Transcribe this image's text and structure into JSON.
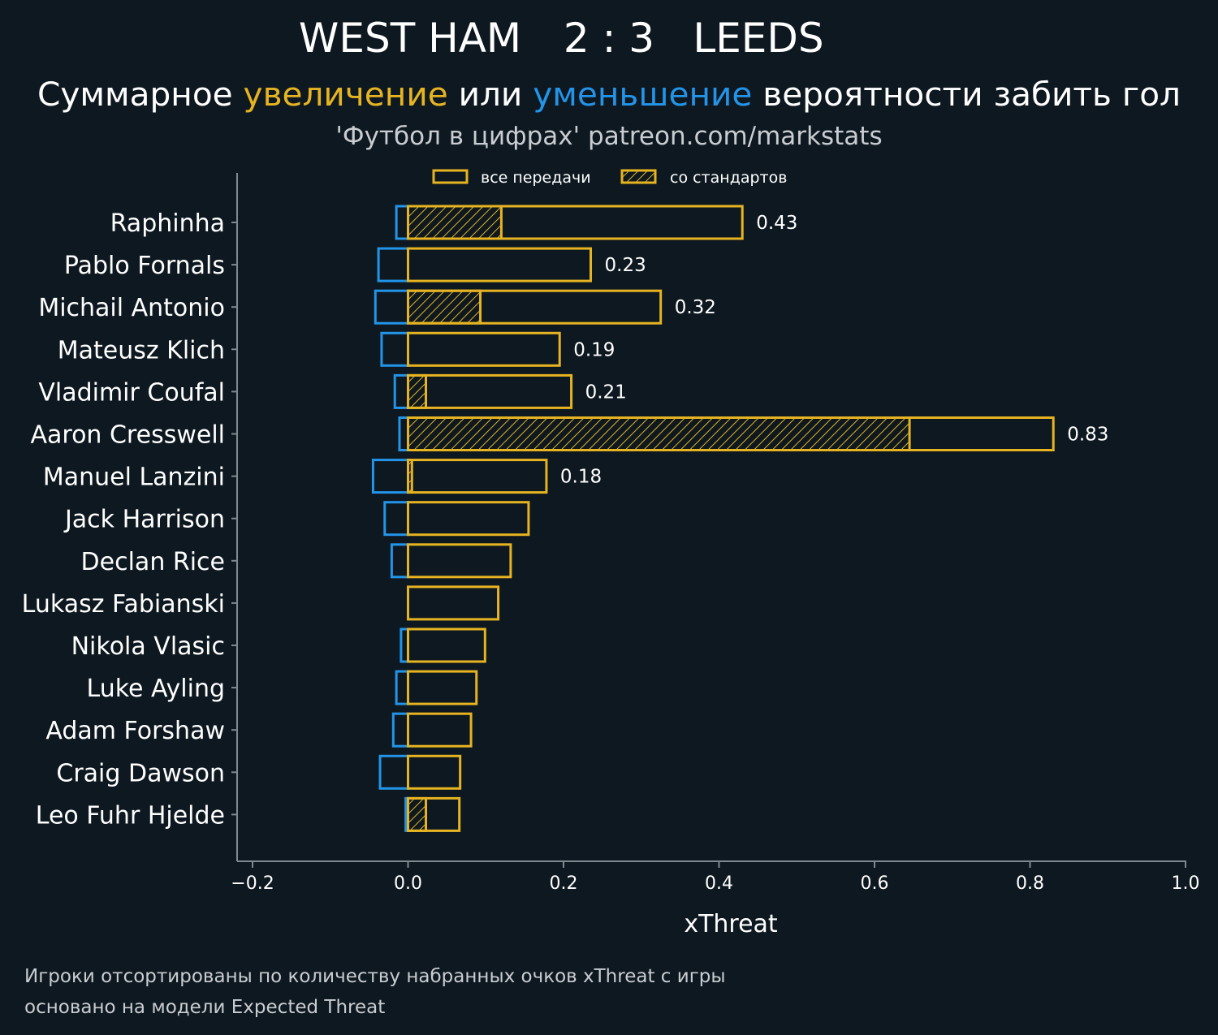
{
  "header": {
    "home_team": "WEST HAM",
    "score": "2 : 3",
    "away_team": "LEEDS",
    "subtitle_part1": "Суммарное ",
    "subtitle_increase": "увеличение",
    "subtitle_part2": " или ",
    "subtitle_decrease": "уменьшение",
    "subtitle_part3": " вероятности забить гол",
    "credit": "'Футбол в цифрах' patreon.com/markstats"
  },
  "legend": {
    "all_passes": "все передачи",
    "set_pieces": "со стандартов"
  },
  "footer": {
    "line1": "Игроки отсортированы по количеству набранных очков xThreat с игры",
    "line2": "основано на модели Expected Threat"
  },
  "colors": {
    "background": "#0e1820",
    "increase": "#e6b422",
    "decrease": "#2394e8",
    "axis": "#7f8a90",
    "text": "#ffffff"
  },
  "chart_data": {
    "type": "bar",
    "orientation": "horizontal",
    "xlabel": "xThreat",
    "xlim": [
      -0.2,
      1.0
    ],
    "xticks": [
      -0.2,
      0.0,
      0.2,
      0.4,
      0.6,
      0.8,
      1.0
    ],
    "xtick_labels": [
      "−0.2",
      "0.0",
      "0.2",
      "0.4",
      "0.6",
      "0.8",
      "1.0"
    ],
    "categories": [
      "Raphinha",
      "Pablo Fornals",
      "Michail Antonio",
      "Mateusz Klich",
      "Vladimir Coufal",
      "Aaron Cresswell",
      "Manuel Lanzini",
      "Jack Harrison",
      "Declan Rice",
      "Lukasz Fabianski",
      "Nikola Vlasic",
      "Luke Ayling",
      "Adam Forshaw",
      "Craig Dawson",
      "Leo Fuhr Hjelde"
    ],
    "series": [
      {
        "name": "все передачи (увеличение)",
        "values": [
          0.43,
          0.235,
          0.325,
          0.195,
          0.21,
          0.83,
          0.178,
          0.155,
          0.132,
          0.116,
          0.099,
          0.088,
          0.081,
          0.067,
          0.066
        ]
      },
      {
        "name": "со стандартов",
        "values": [
          0.12,
          0.0,
          0.093,
          0.0,
          0.023,
          0.645,
          0.005,
          0.0,
          0.0,
          0.0,
          0.0,
          0.0,
          0.0,
          0.0,
          0.023
        ]
      },
      {
        "name": "уменьшение",
        "values": [
          -0.015,
          -0.038,
          -0.042,
          -0.034,
          -0.017,
          -0.011,
          -0.045,
          -0.03,
          -0.021,
          0.0,
          -0.009,
          -0.015,
          -0.019,
          -0.036,
          -0.003
        ]
      }
    ],
    "data_labels": [
      "0.43",
      "0.23",
      "0.32",
      "0.19",
      "0.21",
      "0.83",
      "0.18",
      "",
      "",
      "",
      "",
      "",
      "",
      "",
      ""
    ]
  }
}
